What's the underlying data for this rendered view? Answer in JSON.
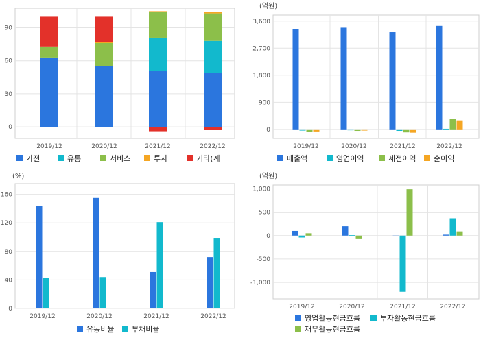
{
  "colors": {
    "blue": "#2b76de",
    "cyan": "#12b9cd",
    "green": "#8cbf4a",
    "orange": "#f5a623",
    "red": "#e3312a",
    "grid": "#e4e4e4",
    "frame": "#cfcfcf"
  },
  "chart_data": [
    {
      "type": "bar",
      "stacked": true,
      "categories": [
        "2019/12",
        "2020/12",
        "2021/12",
        "2022/12"
      ],
      "yticks": [
        0,
        30,
        60,
        90
      ],
      "ylim": [
        -8,
        104
      ],
      "unit": "",
      "series": [
        {
          "name": "가전",
          "color": "blue",
          "values": [
            63,
            55,
            51,
            49
          ]
        },
        {
          "name": "유통",
          "color": "cyan",
          "values": [
            0,
            0,
            30,
            29
          ]
        },
        {
          "name": "서비스",
          "color": "green",
          "values": [
            10,
            21,
            23,
            25
          ]
        },
        {
          "name": "투자",
          "color": "orange",
          "values": [
            0,
            1,
            1,
            1
          ]
        },
        {
          "name": "기타(계",
          "color": "red",
          "values": [
            27,
            23,
            -4,
            -3
          ]
        }
      ],
      "legend_position": "bottom"
    },
    {
      "type": "bar",
      "stacked": false,
      "categories": [
        "2019/12",
        "2020/12",
        "2021/12",
        "2022/12"
      ],
      "yticks": [
        0,
        900,
        1800,
        2700,
        3600
      ],
      "ytick_labels": [
        "0",
        "900",
        "1,800",
        "2,700",
        "3,600"
      ],
      "ylim": [
        -300,
        3800
      ],
      "unit": "(억원)",
      "series": [
        {
          "name": "매출액",
          "color": "blue",
          "values": [
            3330,
            3380,
            3230,
            3440
          ]
        },
        {
          "name": "영업이익",
          "color": "cyan",
          "values": [
            -40,
            -30,
            -50,
            20
          ]
        },
        {
          "name": "세전이익",
          "color": "green",
          "values": [
            -80,
            -50,
            -100,
            340
          ]
        },
        {
          "name": "순이익",
          "color": "orange",
          "values": [
            -70,
            -40,
            -110,
            300
          ]
        }
      ],
      "legend_position": "bottom"
    },
    {
      "type": "bar",
      "stacked": false,
      "categories": [
        "2019/12",
        "2020/12",
        "2021/12",
        "2022/12"
      ],
      "yticks": [
        0,
        40,
        80,
        120,
        160
      ],
      "ylim": [
        0,
        175
      ],
      "unit": "(%)",
      "series": [
        {
          "name": "유동비율",
          "color": "blue",
          "values": [
            144,
            155,
            51,
            72
          ]
        },
        {
          "name": "부채비율",
          "color": "cyan",
          "values": [
            43,
            44,
            121,
            99
          ]
        }
      ],
      "legend_position": "bottom"
    },
    {
      "type": "bar",
      "stacked": false,
      "categories": [
        "2019/12",
        "2020/12",
        "2021/12",
        "2022/12"
      ],
      "yticks": [
        -1000,
        -500,
        0,
        500,
        1000
      ],
      "ytick_labels": [
        "-1,000",
        "-500",
        "0",
        "500",
        "1,000"
      ],
      "ylim": [
        -1350,
        1080
      ],
      "unit": "(억원)",
      "series": [
        {
          "name": "영업활동현금흐름",
          "color": "blue",
          "values": [
            100,
            200,
            -10,
            20
          ]
        },
        {
          "name": "투자활동현금흐름",
          "color": "cyan",
          "values": [
            -40,
            10,
            -1200,
            370
          ]
        },
        {
          "name": "재무활동현금흐름",
          "color": "green",
          "values": [
            50,
            -60,
            990,
            90
          ]
        }
      ],
      "legend_position": "bottom"
    }
  ]
}
